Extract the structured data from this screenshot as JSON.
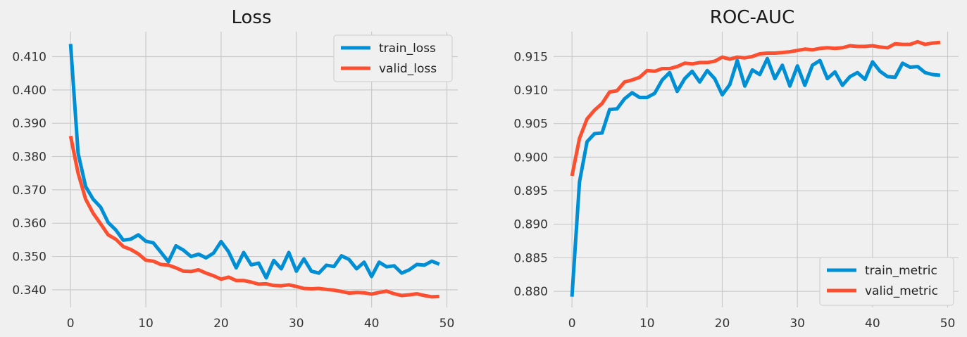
{
  "colors": {
    "train": "#008fd5",
    "valid": "#fc4f30",
    "background": "#f0f0f0",
    "grid": "#cbcbcb"
  },
  "chart_data": [
    {
      "type": "line",
      "title": "Loss",
      "xlabel": "",
      "ylabel": "",
      "xlim": [
        -2.45,
        51.45
      ],
      "ylim": [
        0.3347,
        0.4175
      ],
      "xticks": [
        "0",
        "10",
        "20",
        "30",
        "40",
        "50"
      ],
      "yticks": [
        "0.340",
        "0.350",
        "0.360",
        "0.370",
        "0.380",
        "0.390",
        "0.400",
        "0.410"
      ],
      "grid": true,
      "legend_position": "top-right",
      "x": [
        0,
        1,
        2,
        3,
        4,
        5,
        6,
        7,
        8,
        9,
        10,
        11,
        12,
        13,
        14,
        15,
        16,
        17,
        18,
        19,
        20,
        21,
        22,
        23,
        24,
        25,
        26,
        27,
        28,
        29,
        30,
        31,
        32,
        33,
        34,
        35,
        36,
        37,
        38,
        39,
        40,
        41,
        42,
        43,
        44,
        45,
        46,
        47,
        48,
        49
      ],
      "series": [
        {
          "name": "train_loss",
          "color": "#008fd5",
          "values": [
            0.4138,
            0.381,
            0.371,
            0.3672,
            0.3648,
            0.3602,
            0.358,
            0.3549,
            0.3552,
            0.3565,
            0.3546,
            0.3541,
            0.3513,
            0.3484,
            0.3532,
            0.3519,
            0.35,
            0.3507,
            0.3496,
            0.351,
            0.3545,
            0.3514,
            0.3466,
            0.3512,
            0.3475,
            0.348,
            0.3436,
            0.3488,
            0.3463,
            0.3512,
            0.3456,
            0.3493,
            0.3456,
            0.345,
            0.3474,
            0.347,
            0.3502,
            0.3491,
            0.3463,
            0.3483,
            0.344,
            0.3483,
            0.3469,
            0.3472,
            0.345,
            0.346,
            0.3476,
            0.3474,
            0.3486,
            0.3477
          ]
        },
        {
          "name": "valid_loss",
          "color": "#fc4f30",
          "values": [
            0.3862,
            0.375,
            0.3672,
            0.363,
            0.3598,
            0.3565,
            0.3552,
            0.353,
            0.3521,
            0.3508,
            0.3489,
            0.3486,
            0.3476,
            0.3474,
            0.3466,
            0.3456,
            0.3455,
            0.346,
            0.345,
            0.3442,
            0.3432,
            0.3438,
            0.3428,
            0.3428,
            0.3423,
            0.3417,
            0.3418,
            0.3413,
            0.3412,
            0.3415,
            0.341,
            0.3404,
            0.3403,
            0.3404,
            0.3401,
            0.3399,
            0.3395,
            0.339,
            0.3392,
            0.3391,
            0.3387,
            0.3392,
            0.3396,
            0.3388,
            0.3383,
            0.3385,
            0.3388,
            0.3383,
            0.3379,
            0.338
          ]
        }
      ]
    },
    {
      "type": "line",
      "title": "ROC-AUC",
      "xlabel": "",
      "ylabel": "",
      "xlim": [
        -2.45,
        51.45
      ],
      "ylim": [
        0.8776,
        0.9187
      ],
      "xticks": [
        "0",
        "10",
        "20",
        "30",
        "40",
        "50"
      ],
      "yticks": [
        "0.880",
        "0.885",
        "0.890",
        "0.895",
        "0.900",
        "0.905",
        "0.910",
        "0.915"
      ],
      "grid": true,
      "legend_position": "bottom-right",
      "x": [
        0,
        1,
        2,
        3,
        4,
        5,
        6,
        7,
        8,
        9,
        10,
        11,
        12,
        13,
        14,
        15,
        16,
        17,
        18,
        19,
        20,
        21,
        22,
        23,
        24,
        25,
        26,
        27,
        28,
        29,
        30,
        31,
        32,
        33,
        34,
        35,
        36,
        37,
        38,
        39,
        40,
        41,
        42,
        43,
        44,
        45,
        46,
        47,
        48,
        49
      ],
      "series": [
        {
          "name": "train_metric",
          "color": "#008fd5",
          "values": [
            0.8792,
            0.8963,
            0.9023,
            0.9035,
            0.9036,
            0.9071,
            0.9072,
            0.9087,
            0.9096,
            0.9089,
            0.9089,
            0.9095,
            0.9115,
            0.9126,
            0.9098,
            0.9117,
            0.9128,
            0.9112,
            0.9129,
            0.9117,
            0.9093,
            0.9108,
            0.9144,
            0.9106,
            0.913,
            0.9123,
            0.9147,
            0.9117,
            0.9137,
            0.9106,
            0.9136,
            0.9107,
            0.9137,
            0.9144,
            0.9117,
            0.9127,
            0.9107,
            0.912,
            0.9126,
            0.9116,
            0.9142,
            0.9128,
            0.912,
            0.9119,
            0.914,
            0.9134,
            0.9135,
            0.9126,
            0.9123,
            0.9122
          ]
        },
        {
          "name": "valid_metric",
          "color": "#fc4f30",
          "values": [
            0.8972,
            0.9028,
            0.9057,
            0.907,
            0.908,
            0.9097,
            0.9099,
            0.9112,
            0.9115,
            0.9119,
            0.9129,
            0.9128,
            0.9132,
            0.9132,
            0.9135,
            0.914,
            0.9139,
            0.9141,
            0.9141,
            0.9143,
            0.9149,
            0.9146,
            0.9149,
            0.9148,
            0.915,
            0.9154,
            0.9155,
            0.9155,
            0.9156,
            0.9157,
            0.9159,
            0.9161,
            0.916,
            0.9162,
            0.9163,
            0.9162,
            0.9163,
            0.9166,
            0.9165,
            0.9165,
            0.9166,
            0.9164,
            0.9163,
            0.9169,
            0.9168,
            0.9168,
            0.9172,
            0.9168,
            0.917,
            0.9171
          ]
        }
      ]
    }
  ]
}
